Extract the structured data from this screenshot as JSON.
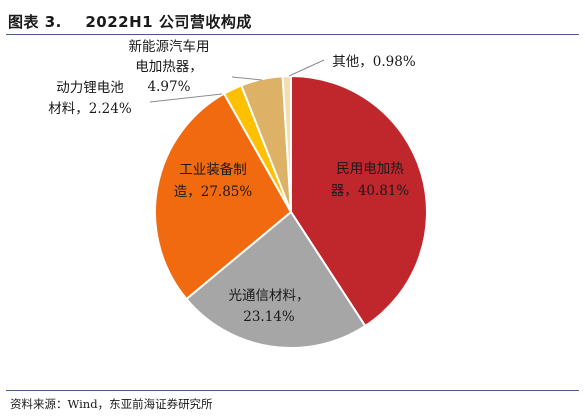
{
  "figure": {
    "title": "图表 3.　 2022H1 公司营收构成",
    "source": "资料来源：Wind，东亚前海证券研究所"
  },
  "chart_data": {
    "type": "pie",
    "unit": "%",
    "start": "top, clockwise",
    "slices": [
      {
        "label": "民用电加热器",
        "value": 40.81,
        "color": "#C0272D",
        "label_lines": [
          "民用电加热",
          "器，40.81%"
        ]
      },
      {
        "label": "光通信材料",
        "value": 23.14,
        "color": "#A6A6A6",
        "label_lines": [
          "光通信材料，",
          "23.14%"
        ]
      },
      {
        "label": "工业装备制造",
        "value": 27.85,
        "color": "#F26A0F",
        "label_lines": [
          "工业装备制",
          "造，27.85%"
        ]
      },
      {
        "label": "动力锂电池材料",
        "value": 2.24,
        "color": "#FFC000",
        "label_lines": [
          "动力锂电池",
          "材料，2.24%"
        ]
      },
      {
        "label": "新能源汽车用电加热器",
        "value": 4.97,
        "color": "#DDB266",
        "label_lines": [
          "新能源汽车用",
          "电加热器，",
          "4.97%"
        ]
      },
      {
        "label": "其他",
        "value": 0.98,
        "color": "#F3DFAE",
        "label_lines": [
          "其他，0.98%"
        ]
      }
    ]
  }
}
